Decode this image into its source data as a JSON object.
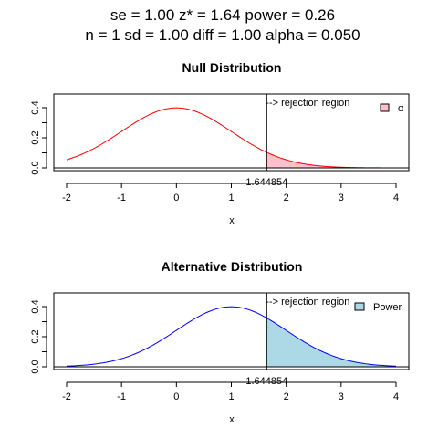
{
  "header": {
    "line1": "se = 1.00      z* = 1.64      power = 0.26",
    "line2": "n =   1    sd = 1.00    diff = 1.00    alpha = 0.050"
  },
  "chart_data": [
    {
      "type": "area",
      "title": "Null Distribution",
      "xlabel": "x",
      "ylabel": "",
      "xlim": [
        -2,
        4
      ],
      "ylim": [
        0,
        0.45
      ],
      "xticks": [
        "-2",
        "-1",
        "0",
        "1",
        "2",
        "3",
        "4"
      ],
      "yticks": [
        "0.0",
        "0.2",
        "0.4"
      ],
      "yticks_minor": [
        0.1,
        0.3
      ],
      "series": [
        {
          "distribution": "normal",
          "mean": 0,
          "sd": 1,
          "color": "#ff0000"
        }
      ],
      "critical_value": 1.644854,
      "critical_label": "1.644854",
      "region_label": "--> rejection region",
      "shaded_region": {
        "from": 1.644854,
        "to": 4,
        "fill": "#ffc0cb"
      },
      "legend": {
        "label": "α",
        "fill": "#ffc0cb",
        "position": "top-right"
      }
    },
    {
      "type": "area",
      "title": "Alternative Distribution",
      "xlabel": "x",
      "ylabel": "",
      "xlim": [
        -2,
        4
      ],
      "ylim": [
        0,
        0.45
      ],
      "xticks": [
        "-2",
        "-1",
        "0",
        "1",
        "2",
        "3",
        "4"
      ],
      "yticks": [
        "0.0",
        "0.2",
        "0.4"
      ],
      "yticks_minor": [
        0.1,
        0.3
      ],
      "series": [
        {
          "distribution": "normal",
          "mean": 1,
          "sd": 1,
          "color": "#0000ff"
        }
      ],
      "critical_value": 1.644854,
      "critical_label": "1.644854",
      "region_label": "--> rejection region",
      "shaded_region": {
        "from": 1.644854,
        "to": 4,
        "fill": "#add8e6"
      },
      "legend": {
        "label": "Power",
        "fill": "#add8e6",
        "position": "top-right"
      }
    }
  ]
}
